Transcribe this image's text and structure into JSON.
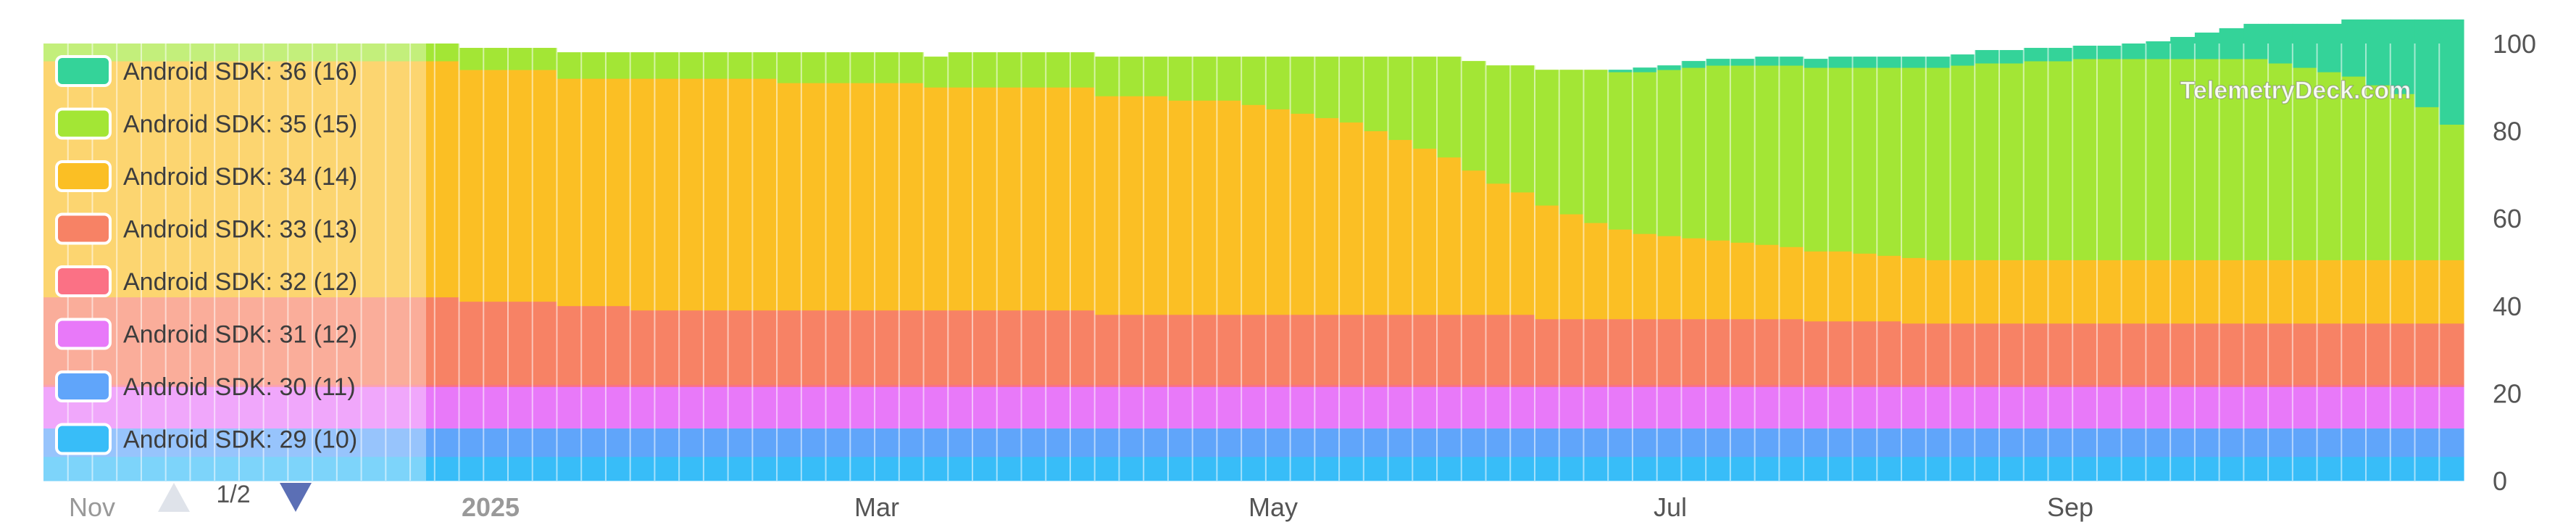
{
  "colors": {
    "sdk36": "#34d399",
    "sdk35": "#a3e635",
    "sdk34": "#fbbf24",
    "sdk33": "#f78265",
    "sdk32": "#fb7185",
    "sdk31": "#e879f9",
    "sdk30": "#60a5fa",
    "sdk29": "#38bdf8"
  },
  "legend": {
    "page_indicator": "1/2",
    "prev_icon": "triangle-up-icon",
    "next_icon": "triangle-down-icon"
  },
  "watermark": "TelemetryDeck.com",
  "chart_data": {
    "type": "area",
    "subtype": "stacked-percent-step",
    "x_tick_labels": [
      "Nov",
      "2025",
      "Mar",
      "May",
      "Jul",
      "Sep"
    ],
    "y_tick_labels": [
      "0",
      "20",
      "40",
      "60",
      "80",
      "100"
    ],
    "ylim": [
      0,
      100
    ],
    "grid": true,
    "legend_position": "left overlay",
    "series": [
      {
        "name": "Android SDK: 36 (16)",
        "key": "sdk36",
        "values": [
          0,
          0,
          0,
          0,
          0,
          0,
          0,
          0,
          0,
          0,
          0,
          0,
          0,
          0,
          0,
          0,
          0,
          0,
          0,
          0,
          0,
          0,
          0,
          0,
          0,
          0,
          0,
          0,
          0,
          0,
          0,
          0,
          0,
          0,
          0,
          0,
          0,
          0,
          0,
          0,
          0,
          0,
          0,
          0,
          0,
          0,
          0,
          0,
          0,
          0,
          0,
          0,
          0,
          0,
          0,
          0,
          0,
          0,
          0,
          0,
          0,
          0,
          0,
          0,
          0.5,
          1,
          1,
          1.5,
          1.5,
          1.5,
          2,
          2,
          2,
          2.5,
          2.5,
          2.5,
          2.5,
          2.5,
          2.5,
          3,
          3,
          3,
          3,
          3,
          3,
          3.5,
          4,
          5,
          6,
          7,
          8,
          9,
          10,
          11,
          13,
          15,
          17,
          20,
          24
        ]
      },
      {
        "name": "Android SDK: 35 (15)",
        "key": "sdk35",
        "values": [
          4,
          4,
          4,
          4,
          4,
          4,
          4,
          4,
          4,
          4,
          4,
          4,
          4,
          4,
          4,
          4,
          4,
          5,
          5,
          5,
          5,
          6,
          6,
          6,
          6,
          6,
          6,
          6,
          6,
          6,
          7,
          7,
          7,
          7,
          7,
          7,
          7,
          8,
          8,
          8,
          8,
          8,
          8,
          9,
          9,
          9,
          10,
          10,
          10,
          11,
          12,
          13,
          14,
          15,
          17,
          19,
          21,
          23,
          25,
          27,
          29,
          31,
          33,
          35,
          36,
          37,
          38,
          39,
          40,
          40.5,
          41,
          41.5,
          42,
          42,
          42.5,
          43,
          43.5,
          44,
          44.5,
          45,
          45,
          45.5,
          45.5,
          46,
          46,
          46,
          46,
          46,
          46,
          46,
          46,
          45,
          44,
          43,
          42,
          40,
          38,
          35,
          31
        ]
      },
      {
        "name": "Android SDK: 34 (14)",
        "key": "sdk34",
        "values": [
          54,
          54,
          54,
          54,
          54,
          54,
          54,
          54,
          54,
          54,
          54,
          54,
          54,
          54,
          54,
          54,
          54,
          53,
          53,
          53,
          53,
          52,
          52,
          52,
          53,
          53,
          53,
          53,
          53,
          53,
          52,
          52,
          52,
          52,
          52,
          52,
          51,
          51,
          51,
          51,
          51,
          51,
          51,
          50,
          50,
          50,
          49,
          49,
          49,
          48,
          47,
          46,
          45,
          44,
          42,
          40,
          38,
          36,
          33,
          30,
          28,
          26,
          24,
          22,
          20.5,
          19.5,
          19,
          18.5,
          18,
          17.5,
          17,
          16.5,
          16,
          16,
          15.5,
          15,
          15,
          14.5,
          14.5,
          14.5,
          14.5,
          14.5,
          14.5,
          14.5,
          14.5,
          14.5,
          14.5,
          14.5,
          14.5,
          14.5,
          14.5,
          14.5,
          14.5,
          14.5,
          14.5,
          14.5,
          14.5,
          14.5,
          14.5
        ]
      },
      {
        "name": "Android SDK: 33 (13)",
        "key": "sdk33",
        "values": [
          20,
          20,
          20,
          20,
          20,
          20,
          20,
          20,
          20,
          20,
          20,
          20,
          20,
          20,
          20,
          20,
          20,
          19,
          19,
          19,
          19,
          18,
          18,
          18,
          17,
          17,
          17,
          17,
          17,
          17,
          17,
          17,
          17,
          17,
          17,
          17,
          17,
          17,
          17,
          17,
          17,
          17,
          17,
          16,
          16,
          16,
          16,
          16,
          16,
          16,
          16,
          16,
          16,
          16,
          16,
          16,
          16,
          16,
          16,
          16,
          16,
          15,
          15,
          15,
          15,
          15,
          15,
          15,
          15,
          15,
          15,
          15,
          14.5,
          14.5,
          14.5,
          14.5,
          14,
          14,
          14,
          14,
          14,
          14,
          14,
          14,
          14,
          14,
          14,
          14,
          14,
          14,
          14,
          14,
          14,
          14,
          14,
          14,
          14,
          14,
          14
        ]
      },
      {
        "name": "Android SDK: 32 (12)",
        "key": "sdk32",
        "values": [
          0.5,
          0.5,
          0.5,
          0.5,
          0.5,
          0.5,
          0.5,
          0.5,
          0.5,
          0.5,
          0.5,
          0.5,
          0.5,
          0.5,
          0.5,
          0.5,
          0.5,
          0.5,
          0.5,
          0.5,
          0.5,
          0.5,
          0.5,
          0.5,
          0.5,
          0.5,
          0.5,
          0.5,
          0.5,
          0.5,
          0.5,
          0.5,
          0.5,
          0.5,
          0.5,
          0.5,
          0.5,
          0.5,
          0.5,
          0.5,
          0.5,
          0.5,
          0.5,
          0.5,
          0.5,
          0.5,
          0.5,
          0.5,
          0.5,
          0.5,
          0.5,
          0.5,
          0.5,
          0.5,
          0.5,
          0.5,
          0.5,
          0.5,
          0.5,
          0.5,
          0.5,
          0.5,
          0.5,
          0.5,
          0.5,
          0.5,
          0.5,
          0.5,
          0.5,
          0.5,
          0.5,
          0.5,
          0.5,
          0.5,
          0.5,
          0.5,
          0.5,
          0.5,
          0.5,
          0.5,
          0.5,
          0.5,
          0.5,
          0.5,
          0.5,
          0.5,
          0.5,
          0.5,
          0.5,
          0.5,
          0.5,
          0.5,
          0.5,
          0.5,
          0.5,
          0.5,
          0.5,
          0.5,
          0.5
        ]
      },
      {
        "name": "Android SDK: 31 (12)",
        "key": "sdk31",
        "values": [
          9.5,
          9.5,
          9.5,
          9.5,
          9.5,
          9.5,
          9.5,
          9.5,
          9.5,
          9.5,
          9.5,
          9.5,
          9.5,
          9.5,
          9.5,
          9.5,
          9.5,
          9.5,
          9.5,
          9.5,
          9.5,
          9.5,
          9.5,
          9.5,
          9.5,
          9.5,
          9.5,
          9.5,
          9.5,
          9.5,
          9.5,
          9.5,
          9.5,
          9.5,
          9.5,
          9.5,
          9.5,
          9.5,
          9.5,
          9.5,
          9.5,
          9.5,
          9.5,
          9.5,
          9.5,
          9.5,
          9.5,
          9.5,
          9.5,
          9.5,
          9.5,
          9.5,
          9.5,
          9.5,
          9.5,
          9.5,
          9.5,
          9.5,
          9.5,
          9.5,
          9.5,
          9.5,
          9.5,
          9.5,
          9.5,
          9.5,
          9.5,
          9.5,
          9.5,
          9.5,
          9.5,
          9.5,
          9.5,
          9.5,
          9.5,
          9.5,
          9.5,
          9.5,
          9.5,
          9.5,
          9.5,
          9.5,
          9.5,
          9.5,
          9.5,
          9.5,
          9.5,
          9.5,
          9.5,
          9.5,
          9.5,
          9.5,
          9.5,
          9.5,
          9.5,
          9.5,
          9.5,
          9.5,
          9.5
        ]
      },
      {
        "name": "Android SDK: 30 (11)",
        "key": "sdk30",
        "values": [
          6.5,
          6.5,
          6.5,
          6.5,
          6.5,
          6.5,
          6.5,
          6.5,
          6.5,
          6.5,
          6.5,
          6.5,
          6.5,
          6.5,
          6.5,
          6.5,
          6.5,
          6.5,
          6.5,
          6.5,
          6.5,
          6.5,
          6.5,
          6.5,
          6.5,
          6.5,
          6.5,
          6.5,
          6.5,
          6.5,
          6.5,
          6.5,
          6.5,
          6.5,
          6.5,
          6.5,
          6.5,
          6.5,
          6.5,
          6.5,
          6.5,
          6.5,
          6.5,
          6.5,
          6.5,
          6.5,
          6.5,
          6.5,
          6.5,
          6.5,
          6.5,
          6.5,
          6.5,
          6.5,
          6.5,
          6.5,
          6.5,
          6.5,
          6.5,
          6.5,
          6.5,
          6.5,
          6.5,
          6.5,
          6.5,
          6.5,
          6.5,
          6.5,
          6.5,
          6.5,
          6.5,
          6.5,
          6.5,
          6.5,
          6.5,
          6.5,
          6.5,
          6.5,
          6.5,
          6.5,
          6.5,
          6.5,
          6.5,
          6.5,
          6.5,
          6.5,
          6.5,
          6.5,
          6.5,
          6.5,
          6.5,
          6.5,
          6.5,
          6.5,
          6.5,
          6.5,
          6.5,
          6.5,
          6.5
        ]
      },
      {
        "name": "Android SDK: 29 (10)",
        "key": "sdk29",
        "values": [
          5.5,
          5.5,
          5.5,
          5.5,
          5.5,
          5.5,
          5.5,
          5.5,
          5.5,
          5.5,
          5.5,
          5.5,
          5.5,
          5.5,
          5.5,
          5.5,
          5.5,
          5.5,
          5.5,
          5.5,
          5.5,
          5.5,
          5.5,
          5.5,
          5.5,
          5.5,
          5.5,
          5.5,
          5.5,
          5.5,
          5.5,
          5.5,
          5.5,
          5.5,
          5.5,
          5.5,
          5.5,
          5.5,
          5.5,
          5.5,
          5.5,
          5.5,
          5.5,
          5.5,
          5.5,
          5.5,
          5.5,
          5.5,
          5.5,
          5.5,
          5.5,
          5.5,
          5.5,
          5.5,
          5.5,
          5.5,
          5.5,
          5.5,
          5.5,
          5.5,
          5.5,
          5.5,
          5.5,
          5.5,
          5.5,
          5.5,
          5.5,
          5.5,
          5.5,
          5.5,
          5.5,
          5.5,
          5.5,
          5.5,
          5.5,
          5.5,
          5.5,
          5.5,
          5.5,
          5.5,
          5.5,
          5.5,
          5.5,
          5.5,
          5.5,
          5.5,
          5.5,
          5.5,
          5.5,
          5.5,
          5.5,
          5.5,
          5.5,
          5.5,
          5.5,
          5.5,
          5.5,
          5.5,
          5.5
        ]
      }
    ]
  }
}
